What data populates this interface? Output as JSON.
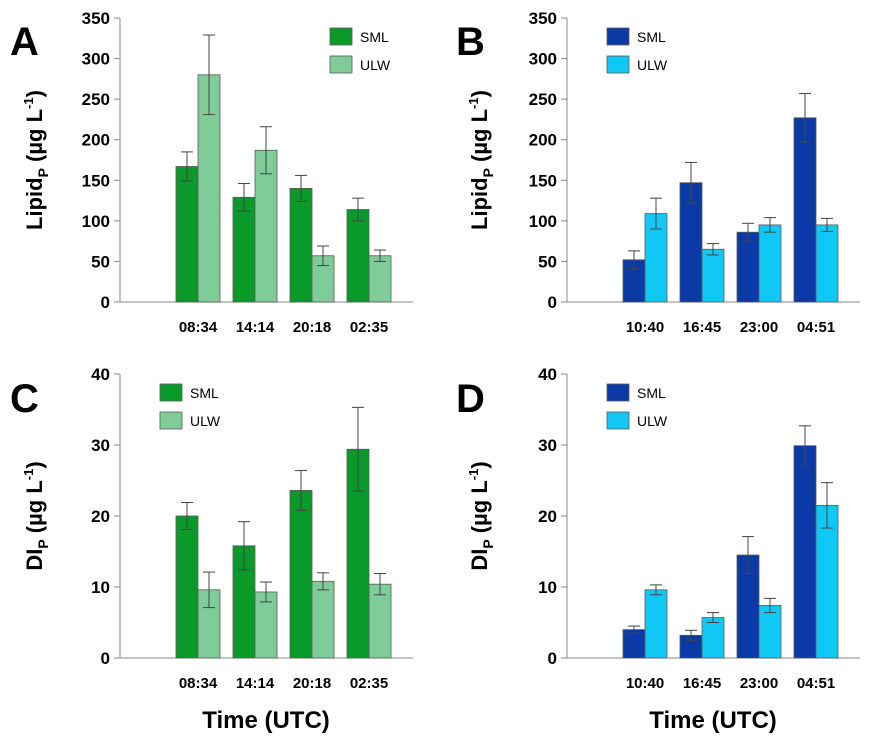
{
  "x_axis_title": "Time (UTC)",
  "chart_data": [
    {
      "panel": "A",
      "type": "bar",
      "ylabel": {
        "base": "Lipid",
        "sub": "P",
        "units_pre": " (µg L",
        "sup": "-1",
        "units_post": ")"
      },
      "ylim": [
        0,
        350
      ],
      "yticks": [
        0,
        50,
        100,
        150,
        200,
        250,
        300,
        350
      ],
      "categories": [
        "08:34",
        "14:14",
        "20:18",
        "02:35"
      ],
      "legend": "top-right",
      "series": [
        {
          "name": "SML",
          "color": "#0a9a2a",
          "values": [
            167,
            129,
            140,
            114
          ],
          "errors": [
            18,
            17,
            16,
            14
          ]
        },
        {
          "name": "ULW",
          "color": "#80cc98",
          "values": [
            280,
            187,
            57,
            57
          ],
          "errors": [
            49,
            29,
            12,
            7
          ]
        }
      ]
    },
    {
      "panel": "B",
      "type": "bar",
      "ylabel": {
        "base": "Lipid",
        "sub": "P",
        "units_pre": " (µg L",
        "sup": "-1",
        "units_post": ")"
      },
      "ylim": [
        0,
        350
      ],
      "yticks": [
        0,
        50,
        100,
        150,
        200,
        250,
        300,
        350
      ],
      "categories": [
        "10:40",
        "16:45",
        "23:00",
        "04:51"
      ],
      "legend": "top-left",
      "series": [
        {
          "name": "SML",
          "color": "#0b3aa6",
          "values": [
            52,
            147,
            86,
            227
          ],
          "errors": [
            11,
            25,
            11,
            30
          ]
        },
        {
          "name": "ULW",
          "color": "#11c8f5",
          "values": [
            109,
            65,
            95,
            95
          ],
          "errors": [
            19,
            7,
            9,
            8
          ]
        }
      ]
    },
    {
      "panel": "C",
      "type": "bar",
      "ylabel": {
        "base": "DI",
        "sub": "P",
        "units_pre": " (µg L",
        "sup": "-1",
        "units_post": ")"
      },
      "ylim": [
        0,
        40
      ],
      "yticks": [
        0,
        10,
        20,
        30,
        40
      ],
      "categories": [
        "08:34",
        "14:14",
        "20:18",
        "02:35"
      ],
      "legend": "top-left",
      "series": [
        {
          "name": "SML",
          "color": "#0a9a2a",
          "values": [
            20.0,
            15.8,
            23.6,
            29.4
          ],
          "errors": [
            1.9,
            3.4,
            2.8,
            5.9
          ]
        },
        {
          "name": "ULW",
          "color": "#80cc98",
          "values": [
            9.6,
            9.3,
            10.8,
            10.4
          ],
          "errors": [
            2.5,
            1.4,
            1.2,
            1.5
          ]
        }
      ]
    },
    {
      "panel": "D",
      "type": "bar",
      "ylabel": {
        "base": "DI",
        "sub": "P",
        "units_pre": " (µg L",
        "sup": "-1",
        "units_post": ")"
      },
      "ylim": [
        0,
        40
      ],
      "yticks": [
        0,
        10,
        20,
        30,
        40
      ],
      "categories": [
        "10:40",
        "16:45",
        "23:00",
        "04:51"
      ],
      "legend": "top-left",
      "series": [
        {
          "name": "SML",
          "color": "#0b3aa6",
          "values": [
            4.0,
            3.2,
            14.5,
            29.9
          ],
          "errors": [
            0.5,
            0.7,
            2.6,
            2.8
          ]
        },
        {
          "name": "ULW",
          "color": "#11c8f5",
          "values": [
            9.6,
            5.7,
            7.4,
            21.5
          ],
          "errors": [
            0.7,
            0.7,
            1.0,
            3.2
          ]
        }
      ]
    }
  ]
}
